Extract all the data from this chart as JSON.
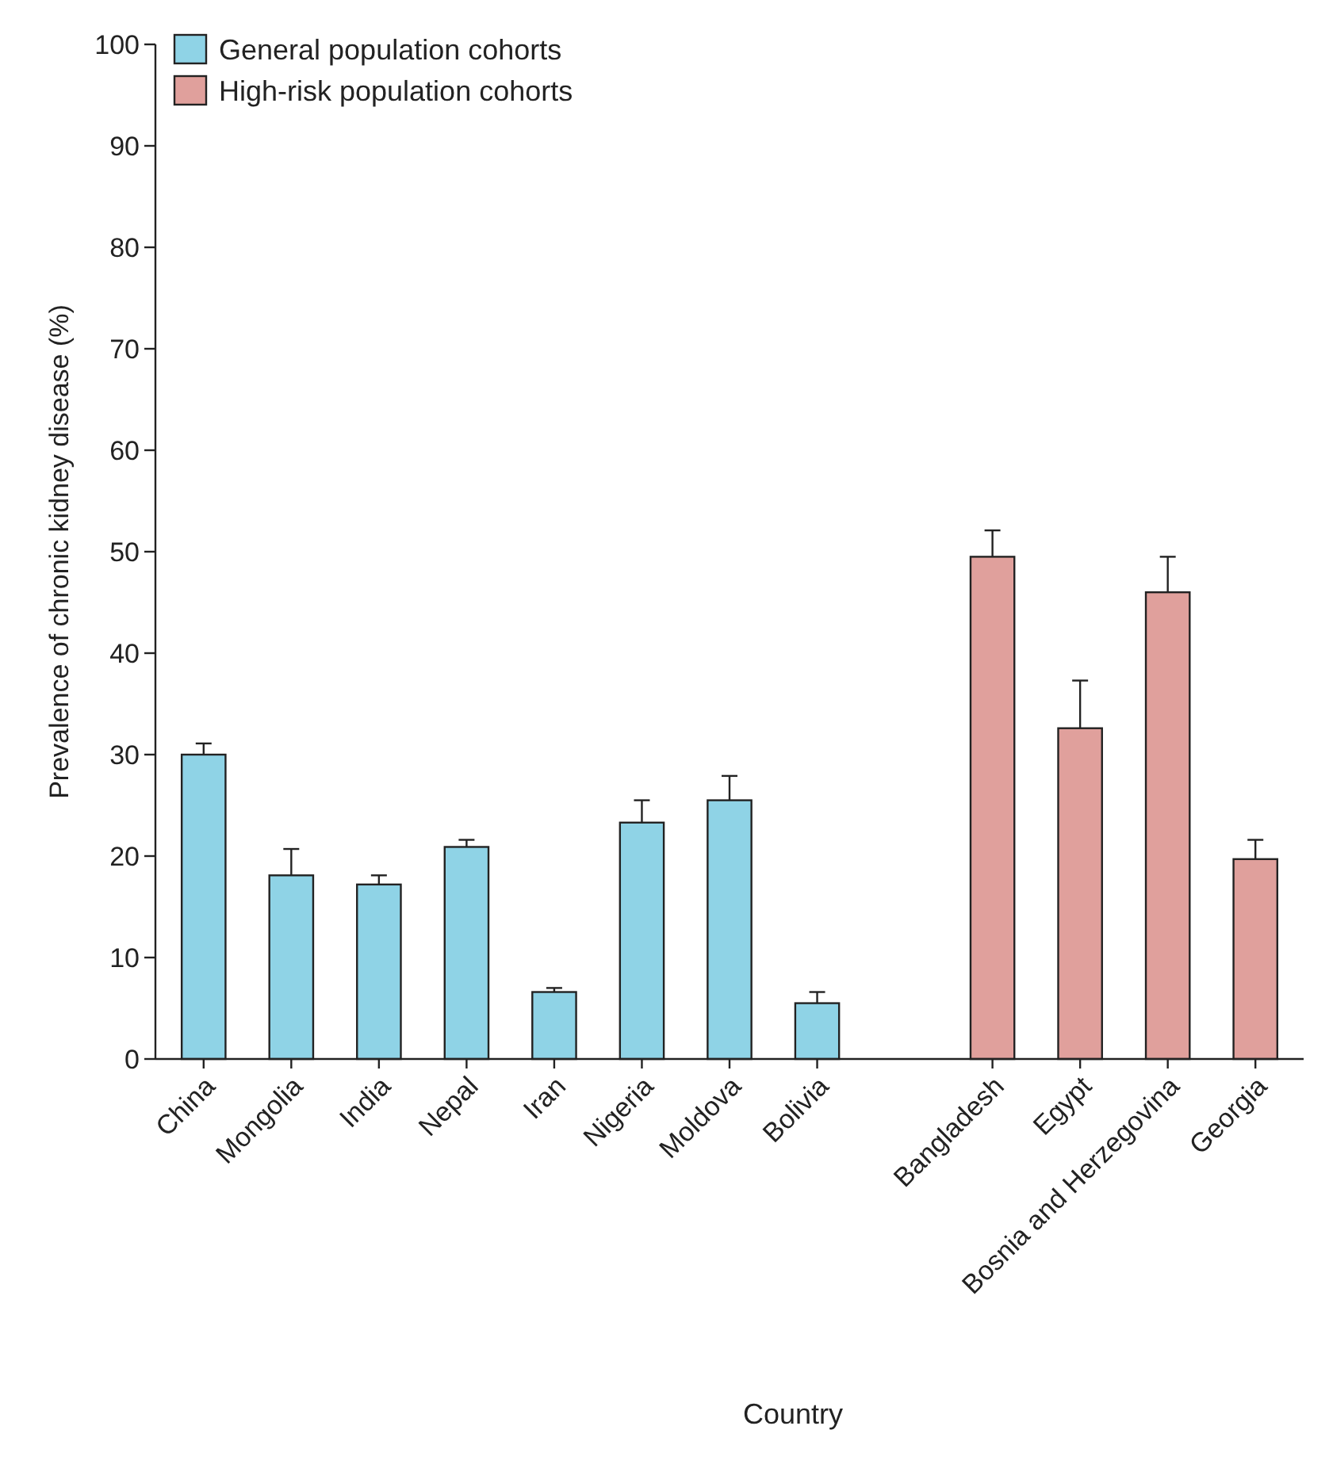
{
  "chart_data": {
    "type": "bar",
    "xlabel": "Country",
    "ylabel": "Prevalence of chronic kidney disease (%)",
    "categories": [
      "China",
      "Mongolia",
      "India",
      "Nepal",
      "Iran",
      "Nigeria",
      "Moldova",
      "Bolivia",
      null,
      "Bangladesh",
      "Egypt",
      "Bosnia and Herzegovina",
      "Georgia"
    ],
    "series": [
      {
        "name": "General population cohorts",
        "color": "#8fd3e6",
        "values": [
          30.0,
          18.1,
          17.2,
          20.9,
          6.6,
          23.3,
          25.5,
          5.5,
          null,
          null,
          null,
          null,
          null
        ],
        "errors": [
          [
            30.0,
            31.1
          ],
          [
            18.1,
            20.7
          ],
          [
            17.2,
            18.1
          ],
          [
            20.9,
            21.6
          ],
          [
            6.6,
            7.0
          ],
          [
            23.3,
            25.5
          ],
          [
            25.5,
            27.9
          ],
          [
            5.5,
            6.6
          ],
          null,
          null,
          null,
          null,
          null
        ]
      },
      {
        "name": "High-risk population cohorts",
        "color": "#e0a09c",
        "values": [
          null,
          null,
          null,
          null,
          null,
          null,
          null,
          null,
          null,
          49.5,
          32.6,
          46.0,
          19.7
        ],
        "errors": [
          null,
          null,
          null,
          null,
          null,
          null,
          null,
          null,
          null,
          [
            49.5,
            52.1
          ],
          [
            32.6,
            37.3
          ],
          [
            46.0,
            49.5
          ],
          [
            19.7,
            21.6
          ]
        ]
      }
    ],
    "ylim": [
      0,
      100
    ],
    "yticks": [
      0,
      10,
      20,
      30,
      40,
      50,
      60,
      70,
      80,
      90,
      100
    ],
    "grid": false,
    "legend": "top left"
  }
}
